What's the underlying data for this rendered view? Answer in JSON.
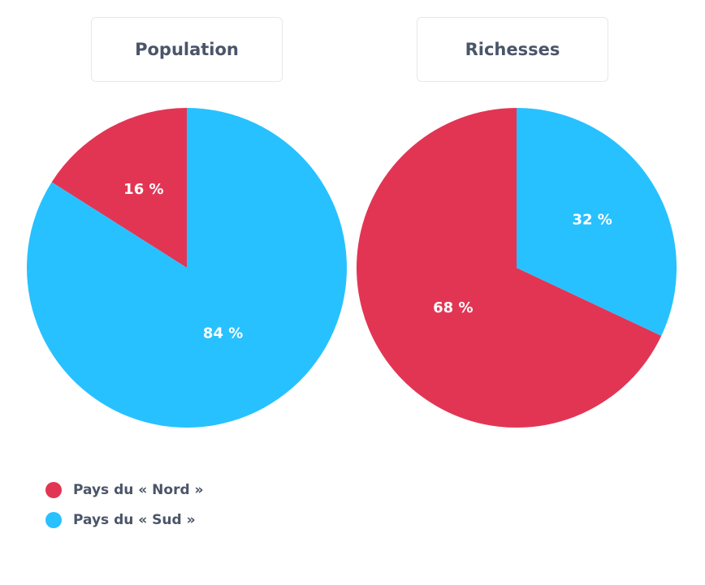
{
  "chart_data": [
    {
      "type": "pie",
      "title": "Population",
      "slices": [
        {
          "name": "Pays du « Nord »",
          "value": 16,
          "label": "16 %",
          "color": "#e23554"
        },
        {
          "name": "Pays du « Sud »",
          "value": 84,
          "label": "84 %",
          "color": "#27c1ff"
        }
      ]
    },
    {
      "type": "pie",
      "title": "Richesses",
      "slices": [
        {
          "name": "Pays du « Nord »",
          "value": 68,
          "label": "68 %",
          "color": "#e23554"
        },
        {
          "name": "Pays du « Sud »",
          "value": 32,
          "label": "32 %",
          "color": "#27c1ff"
        }
      ]
    }
  ],
  "legend": [
    {
      "label": "Pays du « Nord »",
      "color": "#e23554"
    },
    {
      "label": "Pays du « Sud »",
      "color": "#27c1ff"
    }
  ]
}
